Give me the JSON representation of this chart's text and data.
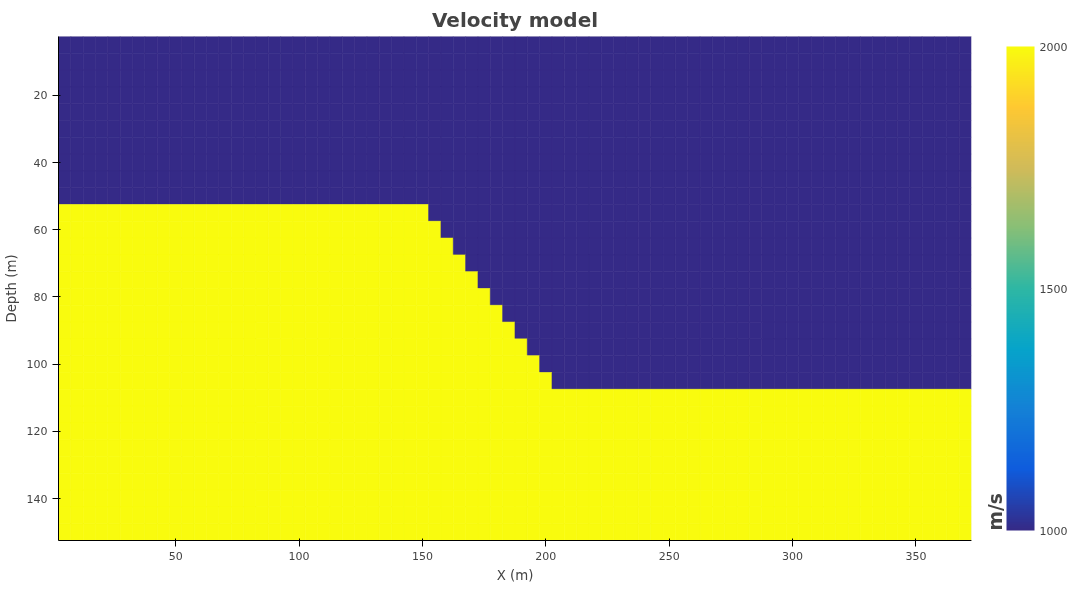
{
  "chart_data": {
    "type": "heatmap",
    "title": "Velocity model",
    "xlabel": "X (m)",
    "ylabel": "Depth (m)",
    "clabel": "m/s",
    "x": [
      5,
      10,
      15,
      20,
      25,
      30,
      35,
      40,
      45,
      50,
      55,
      60,
      65,
      70,
      75,
      80,
      85,
      90,
      95,
      100,
      105,
      110,
      115,
      120,
      125,
      130,
      135,
      140,
      145,
      150,
      155,
      160,
      165,
      170,
      175,
      180,
      185,
      190,
      195,
      200,
      205,
      210,
      215,
      220,
      225,
      230,
      235,
      240,
      245,
      250,
      255,
      260,
      265,
      270,
      275,
      280,
      285,
      290,
      295,
      300,
      305,
      310,
      315,
      320,
      325,
      330,
      335,
      340,
      345,
      350,
      355,
      360,
      365,
      370
    ],
    "y": [
      5,
      10,
      15,
      20,
      25,
      30,
      35,
      40,
      45,
      50,
      55,
      60,
      65,
      70,
      75,
      80,
      85,
      90,
      95,
      100,
      105,
      110,
      115,
      120,
      125,
      130,
      135,
      140,
      145,
      150
    ],
    "cells": [
      [
        1000,
        1000,
        1000,
        1000,
        1000,
        1000,
        1000,
        1000,
        1000,
        1000,
        1000,
        1000,
        1000,
        1000,
        1000,
        1000,
        1000,
        1000,
        1000,
        1000,
        1000,
        1000,
        1000,
        1000,
        1000,
        1000,
        1000,
        1000,
        1000,
        1000,
        1000,
        1000,
        1000,
        1000,
        1000,
        1000,
        1000,
        1000,
        1000,
        1000,
        1000,
        1000,
        1000,
        1000,
        1000,
        1000,
        1000,
        1000,
        1000,
        1000,
        1000,
        1000,
        1000,
        1000,
        1000,
        1000,
        1000,
        1000,
        1000,
        1000,
        1000,
        1000,
        1000,
        1000,
        1000,
        1000,
        1000,
        1000,
        1000,
        1000,
        1000,
        1000,
        1000,
        1000
      ],
      [
        1000,
        1000,
        1000,
        1000,
        1000,
        1000,
        1000,
        1000,
        1000,
        1000,
        1000,
        1000,
        1000,
        1000,
        1000,
        1000,
        1000,
        1000,
        1000,
        1000,
        1000,
        1000,
        1000,
        1000,
        1000,
        1000,
        1000,
        1000,
        1000,
        1000,
        1000,
        1000,
        1000,
        1000,
        1000,
        1000,
        1000,
        1000,
        1000,
        1000,
        1000,
        1000,
        1000,
        1000,
        1000,
        1000,
        1000,
        1000,
        1000,
        1000,
        1000,
        1000,
        1000,
        1000,
        1000,
        1000,
        1000,
        1000,
        1000,
        1000,
        1000,
        1000,
        1000,
        1000,
        1000,
        1000,
        1000,
        1000,
        1000,
        1000,
        1000,
        1000,
        1000,
        1000
      ],
      [
        1000,
        1000,
        1000,
        1000,
        1000,
        1000,
        1000,
        1000,
        1000,
        1000,
        1000,
        1000,
        1000,
        1000,
        1000,
        1000,
        1000,
        1000,
        1000,
        1000,
        1000,
        1000,
        1000,
        1000,
        1000,
        1000,
        1000,
        1000,
        1000,
        1000,
        1000,
        1000,
        1000,
        1000,
        1000,
        1000,
        1000,
        1000,
        1000,
        1000,
        1000,
        1000,
        1000,
        1000,
        1000,
        1000,
        1000,
        1000,
        1000,
        1000,
        1000,
        1000,
        1000,
        1000,
        1000,
        1000,
        1000,
        1000,
        1000,
        1000,
        1000,
        1000,
        1000,
        1000,
        1000,
        1000,
        1000,
        1000,
        1000,
        1000,
        1000,
        1000,
        1000,
        1000
      ],
      [
        1000,
        1000,
        1000,
        1000,
        1000,
        1000,
        1000,
        1000,
        1000,
        1000,
        1000,
        1000,
        1000,
        1000,
        1000,
        1000,
        1000,
        1000,
        1000,
        1000,
        1000,
        1000,
        1000,
        1000,
        1000,
        1000,
        1000,
        1000,
        1000,
        1000,
        1000,
        1000,
        1000,
        1000,
        1000,
        1000,
        1000,
        1000,
        1000,
        1000,
        1000,
        1000,
        1000,
        1000,
        1000,
        1000,
        1000,
        1000,
        1000,
        1000,
        1000,
        1000,
        1000,
        1000,
        1000,
        1000,
        1000,
        1000,
        1000,
        1000,
        1000,
        1000,
        1000,
        1000,
        1000,
        1000,
        1000,
        1000,
        1000,
        1000,
        1000,
        1000,
        1000,
        1000
      ],
      [
        1000,
        1000,
        1000,
        1000,
        1000,
        1000,
        1000,
        1000,
        1000,
        1000,
        1000,
        1000,
        1000,
        1000,
        1000,
        1000,
        1000,
        1000,
        1000,
        1000,
        1000,
        1000,
        1000,
        1000,
        1000,
        1000,
        1000,
        1000,
        1000,
        1000,
        1000,
        1000,
        1000,
        1000,
        1000,
        1000,
        1000,
        1000,
        1000,
        1000,
        1000,
        1000,
        1000,
        1000,
        1000,
        1000,
        1000,
        1000,
        1000,
        1000,
        1000,
        1000,
        1000,
        1000,
        1000,
        1000,
        1000,
        1000,
        1000,
        1000,
        1000,
        1000,
        1000,
        1000,
        1000,
        1000,
        1000,
        1000,
        1000,
        1000,
        1000,
        1000,
        1000,
        1000
      ],
      [
        1000,
        1000,
        1000,
        1000,
        1000,
        1000,
        1000,
        1000,
        1000,
        1000,
        1000,
        1000,
        1000,
        1000,
        1000,
        1000,
        1000,
        1000,
        1000,
        1000,
        1000,
        1000,
        1000,
        1000,
        1000,
        1000,
        1000,
        1000,
        1000,
        1000,
        1000,
        1000,
        1000,
        1000,
        1000,
        1000,
        1000,
        1000,
        1000,
        1000,
        1000,
        1000,
        1000,
        1000,
        1000,
        1000,
        1000,
        1000,
        1000,
        1000,
        1000,
        1000,
        1000,
        1000,
        1000,
        1000,
        1000,
        1000,
        1000,
        1000,
        1000,
        1000,
        1000,
        1000,
        1000,
        1000,
        1000,
        1000,
        1000,
        1000,
        1000,
        1000,
        1000,
        1000
      ],
      [
        1000,
        1000,
        1000,
        1000,
        1000,
        1000,
        1000,
        1000,
        1000,
        1000,
        1000,
        1000,
        1000,
        1000,
        1000,
        1000,
        1000,
        1000,
        1000,
        1000,
        1000,
        1000,
        1000,
        1000,
        1000,
        1000,
        1000,
        1000,
        1000,
        1000,
        1000,
        1000,
        1000,
        1000,
        1000,
        1000,
        1000,
        1000,
        1000,
        1000,
        1000,
        1000,
        1000,
        1000,
        1000,
        1000,
        1000,
        1000,
        1000,
        1000,
        1000,
        1000,
        1000,
        1000,
        1000,
        1000,
        1000,
        1000,
        1000,
        1000,
        1000,
        1000,
        1000,
        1000,
        1000,
        1000,
        1000,
        1000,
        1000,
        1000,
        1000,
        1000,
        1000,
        1000
      ],
      [
        1000,
        1000,
        1000,
        1000,
        1000,
        1000,
        1000,
        1000,
        1000,
        1000,
        1000,
        1000,
        1000,
        1000,
        1000,
        1000,
        1000,
        1000,
        1000,
        1000,
        1000,
        1000,
        1000,
        1000,
        1000,
        1000,
        1000,
        1000,
        1000,
        1000,
        1000,
        1000,
        1000,
        1000,
        1000,
        1000,
        1000,
        1000,
        1000,
        1000,
        1000,
        1000,
        1000,
        1000,
        1000,
        1000,
        1000,
        1000,
        1000,
        1000,
        1000,
        1000,
        1000,
        1000,
        1000,
        1000,
        1000,
        1000,
        1000,
        1000,
        1000,
        1000,
        1000,
        1000,
        1000,
        1000,
        1000,
        1000,
        1000,
        1000,
        1000,
        1000,
        1000,
        1000
      ],
      [
        1000,
        1000,
        1000,
        1000,
        1000,
        1000,
        1000,
        1000,
        1000,
        1000,
        1000,
        1000,
        1000,
        1000,
        1000,
        1000,
        1000,
        1000,
        1000,
        1000,
        1000,
        1000,
        1000,
        1000,
        1000,
        1000,
        1000,
        1000,
        1000,
        1000,
        1000,
        1000,
        1000,
        1000,
        1000,
        1000,
        1000,
        1000,
        1000,
        1000,
        1000,
        1000,
        1000,
        1000,
        1000,
        1000,
        1000,
        1000,
        1000,
        1000,
        1000,
        1000,
        1000,
        1000,
        1000,
        1000,
        1000,
        1000,
        1000,
        1000,
        1000,
        1000,
        1000,
        1000,
        1000,
        1000,
        1000,
        1000,
        1000,
        1000,
        1000,
        1000,
        1000,
        1000
      ],
      [
        1000,
        1000,
        1000,
        1000,
        1000,
        1000,
        1000,
        1000,
        1000,
        1000,
        1000,
        1000,
        1000,
        1000,
        1000,
        1000,
        1000,
        1000,
        1000,
        1000,
        1000,
        1000,
        1000,
        1000,
        1000,
        1000,
        1000,
        1000,
        1000,
        1000,
        1000,
        1000,
        1000,
        1000,
        1000,
        1000,
        1000,
        1000,
        1000,
        1000,
        1000,
        1000,
        1000,
        1000,
        1000,
        1000,
        1000,
        1000,
        1000,
        1000,
        1000,
        1000,
        1000,
        1000,
        1000,
        1000,
        1000,
        1000,
        1000,
        1000,
        1000,
        1000,
        1000,
        1000,
        1000,
        1000,
        1000,
        1000,
        1000,
        1000,
        1000,
        1000,
        1000,
        1000
      ],
      [
        2000,
        2000,
        2000,
        2000,
        2000,
        2000,
        2000,
        2000,
        2000,
        2000,
        2000,
        2000,
        2000,
        2000,
        2000,
        2000,
        2000,
        2000,
        2000,
        2000,
        2000,
        2000,
        2000,
        2000,
        2000,
        2000,
        2000,
        2000,
        2000,
        2000,
        1000,
        1000,
        1000,
        1000,
        1000,
        1000,
        1000,
        1000,
        1000,
        1000,
        1000,
        1000,
        1000,
        1000,
        1000,
        1000,
        1000,
        1000,
        1000,
        1000,
        1000,
        1000,
        1000,
        1000,
        1000,
        1000,
        1000,
        1000,
        1000,
        1000,
        1000,
        1000,
        1000,
        1000,
        1000,
        1000,
        1000,
        1000,
        1000,
        1000,
        1000,
        1000,
        1000,
        1000
      ],
      [
        2000,
        2000,
        2000,
        2000,
        2000,
        2000,
        2000,
        2000,
        2000,
        2000,
        2000,
        2000,
        2000,
        2000,
        2000,
        2000,
        2000,
        2000,
        2000,
        2000,
        2000,
        2000,
        2000,
        2000,
        2000,
        2000,
        2000,
        2000,
        2000,
        2000,
        2000,
        1000,
        1000,
        1000,
        1000,
        1000,
        1000,
        1000,
        1000,
        1000,
        1000,
        1000,
        1000,
        1000,
        1000,
        1000,
        1000,
        1000,
        1000,
        1000,
        1000,
        1000,
        1000,
        1000,
        1000,
        1000,
        1000,
        1000,
        1000,
        1000,
        1000,
        1000,
        1000,
        1000,
        1000,
        1000,
        1000,
        1000,
        1000,
        1000,
        1000,
        1000,
        1000,
        1000
      ],
      [
        2000,
        2000,
        2000,
        2000,
        2000,
        2000,
        2000,
        2000,
        2000,
        2000,
        2000,
        2000,
        2000,
        2000,
        2000,
        2000,
        2000,
        2000,
        2000,
        2000,
        2000,
        2000,
        2000,
        2000,
        2000,
        2000,
        2000,
        2000,
        2000,
        2000,
        2000,
        2000,
        1000,
        1000,
        1000,
        1000,
        1000,
        1000,
        1000,
        1000,
        1000,
        1000,
        1000,
        1000,
        1000,
        1000,
        1000,
        1000,
        1000,
        1000,
        1000,
        1000,
        1000,
        1000,
        1000,
        1000,
        1000,
        1000,
        1000,
        1000,
        1000,
        1000,
        1000,
        1000,
        1000,
        1000,
        1000,
        1000,
        1000,
        1000,
        1000,
        1000,
        1000,
        1000
      ],
      [
        2000,
        2000,
        2000,
        2000,
        2000,
        2000,
        2000,
        2000,
        2000,
        2000,
        2000,
        2000,
        2000,
        2000,
        2000,
        2000,
        2000,
        2000,
        2000,
        2000,
        2000,
        2000,
        2000,
        2000,
        2000,
        2000,
        2000,
        2000,
        2000,
        2000,
        2000,
        2000,
        2000,
        1000,
        1000,
        1000,
        1000,
        1000,
        1000,
        1000,
        1000,
        1000,
        1000,
        1000,
        1000,
        1000,
        1000,
        1000,
        1000,
        1000,
        1000,
        1000,
        1000,
        1000,
        1000,
        1000,
        1000,
        1000,
        1000,
        1000,
        1000,
        1000,
        1000,
        1000,
        1000,
        1000,
        1000,
        1000,
        1000,
        1000,
        1000,
        1000,
        1000,
        1000
      ],
      [
        2000,
        2000,
        2000,
        2000,
        2000,
        2000,
        2000,
        2000,
        2000,
        2000,
        2000,
        2000,
        2000,
        2000,
        2000,
        2000,
        2000,
        2000,
        2000,
        2000,
        2000,
        2000,
        2000,
        2000,
        2000,
        2000,
        2000,
        2000,
        2000,
        2000,
        2000,
        2000,
        2000,
        2000,
        1000,
        1000,
        1000,
        1000,
        1000,
        1000,
        1000,
        1000,
        1000,
        1000,
        1000,
        1000,
        1000,
        1000,
        1000,
        1000,
        1000,
        1000,
        1000,
        1000,
        1000,
        1000,
        1000,
        1000,
        1000,
        1000,
        1000,
        1000,
        1000,
        1000,
        1000,
        1000,
        1000,
        1000,
        1000,
        1000,
        1000,
        1000,
        1000,
        1000
      ],
      [
        2000,
        2000,
        2000,
        2000,
        2000,
        2000,
        2000,
        2000,
        2000,
        2000,
        2000,
        2000,
        2000,
        2000,
        2000,
        2000,
        2000,
        2000,
        2000,
        2000,
        2000,
        2000,
        2000,
        2000,
        2000,
        2000,
        2000,
        2000,
        2000,
        2000,
        2000,
        2000,
        2000,
        2000,
        2000,
        1000,
        1000,
        1000,
        1000,
        1000,
        1000,
        1000,
        1000,
        1000,
        1000,
        1000,
        1000,
        1000,
        1000,
        1000,
        1000,
        1000,
        1000,
        1000,
        1000,
        1000,
        1000,
        1000,
        1000,
        1000,
        1000,
        1000,
        1000,
        1000,
        1000,
        1000,
        1000,
        1000,
        1000,
        1000,
        1000,
        1000,
        1000,
        1000
      ],
      [
        2000,
        2000,
        2000,
        2000,
        2000,
        2000,
        2000,
        2000,
        2000,
        2000,
        2000,
        2000,
        2000,
        2000,
        2000,
        2000,
        2000,
        2000,
        2000,
        2000,
        2000,
        2000,
        2000,
        2000,
        2000,
        2000,
        2000,
        2000,
        2000,
        2000,
        2000,
        2000,
        2000,
        2000,
        2000,
        2000,
        1000,
        1000,
        1000,
        1000,
        1000,
        1000,
        1000,
        1000,
        1000,
        1000,
        1000,
        1000,
        1000,
        1000,
        1000,
        1000,
        1000,
        1000,
        1000,
        1000,
        1000,
        1000,
        1000,
        1000,
        1000,
        1000,
        1000,
        1000,
        1000,
        1000,
        1000,
        1000,
        1000,
        1000,
        1000,
        1000,
        1000,
        1000
      ],
      [
        2000,
        2000,
        2000,
        2000,
        2000,
        2000,
        2000,
        2000,
        2000,
        2000,
        2000,
        2000,
        2000,
        2000,
        2000,
        2000,
        2000,
        2000,
        2000,
        2000,
        2000,
        2000,
        2000,
        2000,
        2000,
        2000,
        2000,
        2000,
        2000,
        2000,
        2000,
        2000,
        2000,
        2000,
        2000,
        2000,
        2000,
        1000,
        1000,
        1000,
        1000,
        1000,
        1000,
        1000,
        1000,
        1000,
        1000,
        1000,
        1000,
        1000,
        1000,
        1000,
        1000,
        1000,
        1000,
        1000,
        1000,
        1000,
        1000,
        1000,
        1000,
        1000,
        1000,
        1000,
        1000,
        1000,
        1000,
        1000,
        1000,
        1000,
        1000,
        1000,
        1000,
        1000
      ],
      [
        2000,
        2000,
        2000,
        2000,
        2000,
        2000,
        2000,
        2000,
        2000,
        2000,
        2000,
        2000,
        2000,
        2000,
        2000,
        2000,
        2000,
        2000,
        2000,
        2000,
        2000,
        2000,
        2000,
        2000,
        2000,
        2000,
        2000,
        2000,
        2000,
        2000,
        2000,
        2000,
        2000,
        2000,
        2000,
        2000,
        2000,
        2000,
        1000,
        1000,
        1000,
        1000,
        1000,
        1000,
        1000,
        1000,
        1000,
        1000,
        1000,
        1000,
        1000,
        1000,
        1000,
        1000,
        1000,
        1000,
        1000,
        1000,
        1000,
        1000,
        1000,
        1000,
        1000,
        1000,
        1000,
        1000,
        1000,
        1000,
        1000,
        1000,
        1000,
        1000,
        1000,
        1000
      ],
      [
        2000,
        2000,
        2000,
        2000,
        2000,
        2000,
        2000,
        2000,
        2000,
        2000,
        2000,
        2000,
        2000,
        2000,
        2000,
        2000,
        2000,
        2000,
        2000,
        2000,
        2000,
        2000,
        2000,
        2000,
        2000,
        2000,
        2000,
        2000,
        2000,
        2000,
        2000,
        2000,
        2000,
        2000,
        2000,
        2000,
        2000,
        2000,
        2000,
        1000,
        1000,
        1000,
        1000,
        1000,
        1000,
        1000,
        1000,
        1000,
        1000,
        1000,
        1000,
        1000,
        1000,
        1000,
        1000,
        1000,
        1000,
        1000,
        1000,
        1000,
        1000,
        1000,
        1000,
        1000,
        1000,
        1000,
        1000,
        1000,
        1000,
        1000,
        1000,
        1000,
        1000,
        1000
      ],
      [
        2000,
        2000,
        2000,
        2000,
        2000,
        2000,
        2000,
        2000,
        2000,
        2000,
        2000,
        2000,
        2000,
        2000,
        2000,
        2000,
        2000,
        2000,
        2000,
        2000,
        2000,
        2000,
        2000,
        2000,
        2000,
        2000,
        2000,
        2000,
        2000,
        2000,
        2000,
        2000,
        2000,
        2000,
        2000,
        2000,
        2000,
        2000,
        2000,
        2000,
        1000,
        1000,
        1000,
        1000,
        1000,
        1000,
        1000,
        1000,
        1000,
        1000,
        1000,
        1000,
        1000,
        1000,
        1000,
        1000,
        1000,
        1000,
        1000,
        1000,
        1000,
        1000,
        1000,
        1000,
        1000,
        1000,
        1000,
        1000,
        1000,
        1000,
        1000,
        1000,
        1000,
        1000
      ],
      [
        2000,
        2000,
        2000,
        2000,
        2000,
        2000,
        2000,
        2000,
        2000,
        2000,
        2000,
        2000,
        2000,
        2000,
        2000,
        2000,
        2000,
        2000,
        2000,
        2000,
        2000,
        2000,
        2000,
        2000,
        2000,
        2000,
        2000,
        2000,
        2000,
        2000,
        2000,
        2000,
        2000,
        2000,
        2000,
        2000,
        2000,
        2000,
        2000,
        2000,
        2000,
        2000,
        2000,
        2000,
        2000,
        2000,
        2000,
        2000,
        2000,
        2000,
        2000,
        2000,
        2000,
        2000,
        2000,
        2000,
        2000,
        2000,
        2000,
        2000,
        2000,
        2000,
        2000,
        2000,
        2000,
        2000,
        2000,
        2000,
        2000,
        2000,
        2000,
        2000,
        2000,
        2000
      ],
      [
        2000,
        2000,
        2000,
        2000,
        2000,
        2000,
        2000,
        2000,
        2000,
        2000,
        2000,
        2000,
        2000,
        2000,
        2000,
        2000,
        2000,
        2000,
        2000,
        2000,
        2000,
        2000,
        2000,
        2000,
        2000,
        2000,
        2000,
        2000,
        2000,
        2000,
        2000,
        2000,
        2000,
        2000,
        2000,
        2000,
        2000,
        2000,
        2000,
        2000,
        2000,
        2000,
        2000,
        2000,
        2000,
        2000,
        2000,
        2000,
        2000,
        2000,
        2000,
        2000,
        2000,
        2000,
        2000,
        2000,
        2000,
        2000,
        2000,
        2000,
        2000,
        2000,
        2000,
        2000,
        2000,
        2000,
        2000,
        2000,
        2000,
        2000,
        2000,
        2000,
        2000,
        2000
      ],
      [
        2000,
        2000,
        2000,
        2000,
        2000,
        2000,
        2000,
        2000,
        2000,
        2000,
        2000,
        2000,
        2000,
        2000,
        2000,
        2000,
        2000,
        2000,
        2000,
        2000,
        2000,
        2000,
        2000,
        2000,
        2000,
        2000,
        2000,
        2000,
        2000,
        2000,
        2000,
        2000,
        2000,
        2000,
        2000,
        2000,
        2000,
        2000,
        2000,
        2000,
        2000,
        2000,
        2000,
        2000,
        2000,
        2000,
        2000,
        2000,
        2000,
        2000,
        2000,
        2000,
        2000,
        2000,
        2000,
        2000,
        2000,
        2000,
        2000,
        2000,
        2000,
        2000,
        2000,
        2000,
        2000,
        2000,
        2000,
        2000,
        2000,
        2000,
        2000,
        2000,
        2000,
        2000
      ],
      [
        2000,
        2000,
        2000,
        2000,
        2000,
        2000,
        2000,
        2000,
        2000,
        2000,
        2000,
        2000,
        2000,
        2000,
        2000,
        2000,
        2000,
        2000,
        2000,
        2000,
        2000,
        2000,
        2000,
        2000,
        2000,
        2000,
        2000,
        2000,
        2000,
        2000,
        2000,
        2000,
        2000,
        2000,
        2000,
        2000,
        2000,
        2000,
        2000,
        2000,
        2000,
        2000,
        2000,
        2000,
        2000,
        2000,
        2000,
        2000,
        2000,
        2000,
        2000,
        2000,
        2000,
        2000,
        2000,
        2000,
        2000,
        2000,
        2000,
        2000,
        2000,
        2000,
        2000,
        2000,
        2000,
        2000,
        2000,
        2000,
        2000,
        2000,
        2000,
        2000,
        2000,
        2000
      ],
      [
        2000,
        2000,
        2000,
        2000,
        2000,
        2000,
        2000,
        2000,
        2000,
        2000,
        2000,
        2000,
        2000,
        2000,
        2000,
        2000,
        2000,
        2000,
        2000,
        2000,
        2000,
        2000,
        2000,
        2000,
        2000,
        2000,
        2000,
        2000,
        2000,
        2000,
        2000,
        2000,
        2000,
        2000,
        2000,
        2000,
        2000,
        2000,
        2000,
        2000,
        2000,
        2000,
        2000,
        2000,
        2000,
        2000,
        2000,
        2000,
        2000,
        2000,
        2000,
        2000,
        2000,
        2000,
        2000,
        2000,
        2000,
        2000,
        2000,
        2000,
        2000,
        2000,
        2000,
        2000,
        2000,
        2000,
        2000,
        2000,
        2000,
        2000,
        2000,
        2000,
        2000,
        2000
      ],
      [
        2000,
        2000,
        2000,
        2000,
        2000,
        2000,
        2000,
        2000,
        2000,
        2000,
        2000,
        2000,
        2000,
        2000,
        2000,
        2000,
        2000,
        2000,
        2000,
        2000,
        2000,
        2000,
        2000,
        2000,
        2000,
        2000,
        2000,
        2000,
        2000,
        2000,
        2000,
        2000,
        2000,
        2000,
        2000,
        2000,
        2000,
        2000,
        2000,
        2000,
        2000,
        2000,
        2000,
        2000,
        2000,
        2000,
        2000,
        2000,
        2000,
        2000,
        2000,
        2000,
        2000,
        2000,
        2000,
        2000,
        2000,
        2000,
        2000,
        2000,
        2000,
        2000,
        2000,
        2000,
        2000,
        2000,
        2000,
        2000,
        2000,
        2000,
        2000,
        2000,
        2000,
        2000
      ],
      [
        2000,
        2000,
        2000,
        2000,
        2000,
        2000,
        2000,
        2000,
        2000,
        2000,
        2000,
        2000,
        2000,
        2000,
        2000,
        2000,
        2000,
        2000,
        2000,
        2000,
        2000,
        2000,
        2000,
        2000,
        2000,
        2000,
        2000,
        2000,
        2000,
        2000,
        2000,
        2000,
        2000,
        2000,
        2000,
        2000,
        2000,
        2000,
        2000,
        2000,
        2000,
        2000,
        2000,
        2000,
        2000,
        2000,
        2000,
        2000,
        2000,
        2000,
        2000,
        2000,
        2000,
        2000,
        2000,
        2000,
        2000,
        2000,
        2000,
        2000,
        2000,
        2000,
        2000,
        2000,
        2000,
        2000,
        2000,
        2000,
        2000,
        2000,
        2000,
        2000,
        2000,
        2000
      ],
      [
        2000,
        2000,
        2000,
        2000,
        2000,
        2000,
        2000,
        2000,
        2000,
        2000,
        2000,
        2000,
        2000,
        2000,
        2000,
        2000,
        2000,
        2000,
        2000,
        2000,
        2000,
        2000,
        2000,
        2000,
        2000,
        2000,
        2000,
        2000,
        2000,
        2000,
        2000,
        2000,
        2000,
        2000,
        2000,
        2000,
        2000,
        2000,
        2000,
        2000,
        2000,
        2000,
        2000,
        2000,
        2000,
        2000,
        2000,
        2000,
        2000,
        2000,
        2000,
        2000,
        2000,
        2000,
        2000,
        2000,
        2000,
        2000,
        2000,
        2000,
        2000,
        2000,
        2000,
        2000,
        2000,
        2000,
        2000,
        2000,
        2000,
        2000,
        2000,
        2000,
        2000,
        2000
      ],
      [
        2000,
        2000,
        2000,
        2000,
        2000,
        2000,
        2000,
        2000,
        2000,
        2000,
        2000,
        2000,
        2000,
        2000,
        2000,
        2000,
        2000,
        2000,
        2000,
        2000,
        2000,
        2000,
        2000,
        2000,
        2000,
        2000,
        2000,
        2000,
        2000,
        2000,
        2000,
        2000,
        2000,
        2000,
        2000,
        2000,
        2000,
        2000,
        2000,
        2000,
        2000,
        2000,
        2000,
        2000,
        2000,
        2000,
        2000,
        2000,
        2000,
        2000,
        2000,
        2000,
        2000,
        2000,
        2000,
        2000,
        2000,
        2000,
        2000,
        2000,
        2000,
        2000,
        2000,
        2000,
        2000,
        2000,
        2000,
        2000,
        2000,
        2000,
        2000,
        2000,
        2000,
        2000
      ]
    ],
    "clim": [
      1000,
      2000
    ],
    "cticks": [
      1000,
      1500,
      2000
    ],
    "xlim": [
      2.5,
      372.5
    ],
    "ylim": [
      152.5,
      2.5
    ],
    "xticks": [
      50,
      100,
      150,
      200,
      250,
      300,
      350
    ],
    "yticks": [
      20,
      40,
      60,
      80,
      100,
      120,
      140
    ]
  }
}
